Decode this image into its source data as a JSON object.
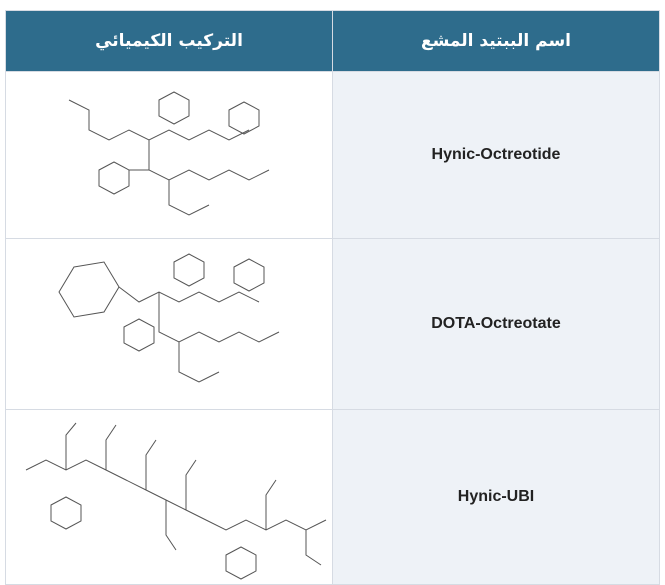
{
  "table": {
    "headers": [
      "التركيب الكيميائي",
      "اسم الببتيد المشع"
    ],
    "rows": [
      {
        "name": "Hynic-Octreotide"
      },
      {
        "name": "DOTA-Octreotate"
      },
      {
        "name": "Hynic-UBI"
      }
    ]
  }
}
